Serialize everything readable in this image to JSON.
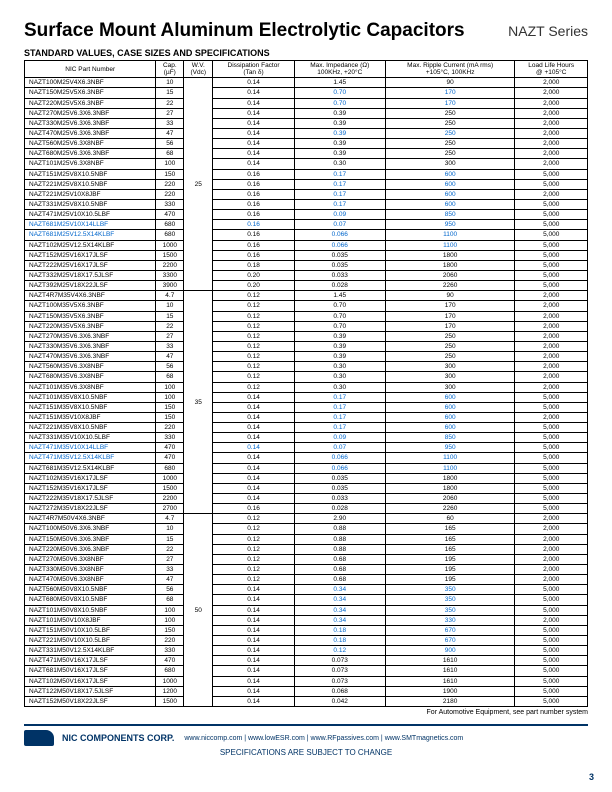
{
  "title": "Surface Mount Aluminum Electrolytic Capacitors",
  "series": "NAZT Series",
  "subtitle": "STANDARD VALUES, CASE SIZES AND SPECIFICATIONS",
  "headers": {
    "part": "NIC Part Number",
    "cap": "Cap.\n(µF)",
    "wv": "W.V.\n(Vdc)",
    "df": "Dissipation Factor\n(Tan δ)",
    "imp": "Max. Impedance (Ω)\n100KHz, +20°C",
    "ripple": "Max. Ripple Current (mA rms)\n+105°C, 100KHz",
    "life": "Load Life Hours\n@ +105°C"
  },
  "groups": [
    {
      "wv": "25",
      "rows": [
        {
          "p": "NAZT100M25V4X6.3NBF",
          "c": "10",
          "d": "0.14",
          "i": "1.45",
          "r": "90",
          "l": "2,000"
        },
        {
          "p": "NAZT150M25V5X6.3NBF",
          "c": "15",
          "d": "0.14",
          "i": "0.70",
          "r": "170",
          "l": "2,000",
          "ib": 1,
          "rb": 1
        },
        {
          "p": "NAZT220M25V5X6.3NBF",
          "c": "22",
          "d": "0.14",
          "i": "0.70",
          "r": "170",
          "l": "2,000",
          "ib": 1,
          "rb": 1
        },
        {
          "p": "NAZT270M25V6.3X6.3NBF",
          "c": "27",
          "d": "0.14",
          "i": "0.39",
          "r": "250",
          "l": "2,000"
        },
        {
          "p": "NAZT330M25V6.3X6.3NBF",
          "c": "33",
          "d": "0.14",
          "i": "0.39",
          "r": "250",
          "l": "2,000"
        },
        {
          "p": "NAZT470M25V6.3X6.3NBF",
          "c": "47",
          "d": "0.14",
          "i": "0.39",
          "r": "250",
          "l": "2,000",
          "ib": 1,
          "rb": 1
        },
        {
          "p": "NAZT560M25V6.3X8NBF",
          "c": "56",
          "d": "0.14",
          "i": "0.39",
          "r": "250",
          "l": "2,000"
        },
        {
          "p": "NAZT680M25V6.3X6.3NBF",
          "c": "68",
          "d": "0.14",
          "i": "0.39",
          "r": "250",
          "l": "2,000"
        },
        {
          "p": "NAZT101M25V6.3X8NBF",
          "c": "100",
          "d": "0.14",
          "i": "0.30",
          "r": "300",
          "l": "2,000"
        },
        {
          "p": "NAZT151M25V8X10.5NBF",
          "c": "150",
          "d": "0.16",
          "i": "0.17",
          "r": "600",
          "l": "5,000",
          "ib": 1,
          "rb": 1
        },
        {
          "p": "NAZT221M25V8X10.5NBF",
          "c": "220",
          "d": "0.16",
          "i": "0.17",
          "r": "600",
          "l": "5,000",
          "ib": 1,
          "rb": 1
        },
        {
          "p": "NAZT221M25V10X8JBF",
          "c": "220",
          "d": "0.16",
          "i": "0.17",
          "r": "600",
          "l": "2,000",
          "ib": 1,
          "rb": 1
        },
        {
          "p": "NAZT331M25V8X10.5NBF",
          "c": "330",
          "d": "0.16",
          "i": "0.17",
          "r": "600",
          "l": "5,000",
          "ib": 1,
          "rb": 1
        },
        {
          "p": "NAZT471M25V10X10.5LBF",
          "c": "470",
          "d": "0.16",
          "i": "0.09",
          "r": "850",
          "l": "5,000",
          "ib": 1,
          "rb": 1
        },
        {
          "p": "NAZT681M25V10X14LLBF",
          "c": "680",
          "d": "0.16",
          "i": "0.07",
          "r": "950",
          "l": "5,000",
          "pb": 1,
          "db": 1,
          "ib": 1,
          "rb": 1
        },
        {
          "p": "NAZT681M25V12.5X14KLBF",
          "c": "680",
          "d": "0.16",
          "i": "0.066",
          "r": "1100",
          "l": "5,000",
          "pb": 1,
          "ib": 1,
          "rb": 1
        },
        {
          "p": "NAZT102M25V12.5X14KLBF",
          "c": "1000",
          "d": "0.16",
          "i": "0.066",
          "r": "1100",
          "l": "5,000",
          "ib": 1,
          "rb": 1
        },
        {
          "p": "NAZT152M25V16X17JLSF",
          "c": "1500",
          "d": "0.16",
          "i": "0.035",
          "r": "1800",
          "l": "5,000"
        },
        {
          "p": "NAZT222M25V16X17JLSF",
          "c": "2200",
          "d": "0.18",
          "i": "0.035",
          "r": "1800",
          "l": "5,000"
        },
        {
          "p": "NAZT332M25V18X17.5JLSF",
          "c": "3300",
          "d": "0.20",
          "i": "0.033",
          "r": "2060",
          "l": "5,000"
        },
        {
          "p": "NAZT392M25V18X22JLSF",
          "c": "3900",
          "d": "0.20",
          "i": "0.028",
          "r": "2260",
          "l": "5,000"
        }
      ]
    },
    {
      "wv": "35",
      "rows": [
        {
          "p": "NAZT4R7M35V4X6.3NBF",
          "c": "4.7",
          "d": "0.12",
          "i": "1.45",
          "r": "90",
          "l": "2,000"
        },
        {
          "p": "NAZT100M35V5X6.3NBF",
          "c": "10",
          "d": "0.12",
          "i": "0.70",
          "r": "170",
          "l": "2,000"
        },
        {
          "p": "NAZT150M35V5X6.3NBF",
          "c": "15",
          "d": "0.12",
          "i": "0.70",
          "r": "170",
          "l": "2,000"
        },
        {
          "p": "NAZT220M35V5X6.3NBF",
          "c": "22",
          "d": "0.12",
          "i": "0.70",
          "r": "170",
          "l": "2,000"
        },
        {
          "p": "NAZT270M35V6.3X6.3NBF",
          "c": "27",
          "d": "0.12",
          "i": "0.39",
          "r": "250",
          "l": "2,000"
        },
        {
          "p": "NAZT330M35V6.3X6.3NBF",
          "c": "33",
          "d": "0.12",
          "i": "0.39",
          "r": "250",
          "l": "2,000"
        },
        {
          "p": "NAZT470M35V6.3X6.3NBF",
          "c": "47",
          "d": "0.12",
          "i": "0.39",
          "r": "250",
          "l": "2,000"
        },
        {
          "p": "NAZT560M35V6.3X8NBF",
          "c": "56",
          "d": "0.12",
          "i": "0.30",
          "r": "300",
          "l": "2,000"
        },
        {
          "p": "NAZT680M35V6.3X8NBF",
          "c": "68",
          "d": "0.12",
          "i": "0.30",
          "r": "300",
          "l": "2,000"
        },
        {
          "p": "NAZT101M35V6.3X8NBF",
          "c": "100",
          "d": "0.12",
          "i": "0.30",
          "r": "300",
          "l": "2,000"
        },
        {
          "p": "NAZT101M35V8X10.5NBF",
          "c": "100",
          "d": "0.14",
          "i": "0.17",
          "r": "600",
          "l": "5,000",
          "ib": 1,
          "rb": 1
        },
        {
          "p": "NAZT151M35V8X10.5NBF",
          "c": "150",
          "d": "0.14",
          "i": "0.17",
          "r": "600",
          "l": "5,000",
          "ib": 1,
          "rb": 1
        },
        {
          "p": "NAZT151M35V10X8JBF",
          "c": "150",
          "d": "0.14",
          "i": "0.17",
          "r": "600",
          "l": "2,000",
          "ib": 1,
          "rb": 1
        },
        {
          "p": "NAZT221M35V8X10.5NBF",
          "c": "220",
          "d": "0.14",
          "i": "0.17",
          "r": "600",
          "l": "5,000",
          "ib": 1,
          "rb": 1
        },
        {
          "p": "NAZT331M35V10X10.5LBF",
          "c": "330",
          "d": "0.14",
          "i": "0.09",
          "r": "850",
          "l": "5,000",
          "ib": 1,
          "rb": 1
        },
        {
          "p": "NAZT471M35V10X14LLBF",
          "c": "470",
          "d": "0.14",
          "i": "0.07",
          "r": "950",
          "l": "5,000",
          "pb": 1,
          "db": 1,
          "ib": 1,
          "rb": 1
        },
        {
          "p": "NAZT471M35V12.5X14KLBF",
          "c": "470",
          "d": "0.14",
          "i": "0.066",
          "r": "1100",
          "l": "5,000",
          "pb": 1,
          "ib": 1,
          "rb": 1
        },
        {
          "p": "NAZT681M35V12.5X14KLBF",
          "c": "680",
          "d": "0.14",
          "i": "0.066",
          "r": "1100",
          "l": "5,000",
          "ib": 1,
          "rb": 1
        },
        {
          "p": "NAZT102M35V16X17JLSF",
          "c": "1000",
          "d": "0.14",
          "i": "0.035",
          "r": "1800",
          "l": "5,000"
        },
        {
          "p": "NAZT152M35V16X17JLSF",
          "c": "1500",
          "d": "0.14",
          "i": "0.035",
          "r": "1800",
          "l": "5,000"
        },
        {
          "p": "NAZT222M35V18X17.5JLSF",
          "c": "2200",
          "d": "0.14",
          "i": "0.033",
          "r": "2060",
          "l": "5,000"
        },
        {
          "p": "NAZT272M35V18X22JLSF",
          "c": "2700",
          "d": "0.16",
          "i": "0.028",
          "r": "2260",
          "l": "5,000"
        }
      ]
    },
    {
      "wv": "50",
      "rows": [
        {
          "p": "NAZT4R7M50V4X6.3NBF",
          "c": "4.7",
          "d": "0.12",
          "i": "2.90",
          "r": "60",
          "l": "2,000"
        },
        {
          "p": "NAZT100M50V6.3X6.3NBF",
          "c": "10",
          "d": "0.12",
          "i": "0.88",
          "r": "165",
          "l": "2,000"
        },
        {
          "p": "NAZT150M50V6.3X6.3NBF",
          "c": "15",
          "d": "0.12",
          "i": "0.88",
          "r": "165",
          "l": "2,000"
        },
        {
          "p": "NAZT220M50V6.3X6.3NBF",
          "c": "22",
          "d": "0.12",
          "i": "0.88",
          "r": "165",
          "l": "2,000"
        },
        {
          "p": "NAZT270M50V6.3X8NBF",
          "c": "27",
          "d": "0.12",
          "i": "0.68",
          "r": "195",
          "l": "2,000"
        },
        {
          "p": "NAZT330M50V6.3X8NBF",
          "c": "33",
          "d": "0.12",
          "i": "0.68",
          "r": "195",
          "l": "2,000"
        },
        {
          "p": "NAZT470M50V6.3X8NBF",
          "c": "47",
          "d": "0.12",
          "i": "0.68",
          "r": "195",
          "l": "2,000"
        },
        {
          "p": "NAZT560M50V8X10.5NBF",
          "c": "56",
          "d": "0.14",
          "i": "0.34",
          "r": "350",
          "l": "5,000",
          "ib": 1,
          "rb": 1
        },
        {
          "p": "NAZT680M50V8X10.5NBF",
          "c": "68",
          "d": "0.14",
          "i": "0.34",
          "r": "350",
          "l": "5,000",
          "ib": 1,
          "rb": 1
        },
        {
          "p": "NAZT101M50V8X10.5NBF",
          "c": "100",
          "d": "0.14",
          "i": "0.34",
          "r": "350",
          "l": "5,000",
          "ib": 1,
          "rb": 1
        },
        {
          "p": "NAZT101M50V10X8JBF",
          "c": "100",
          "d": "0.14",
          "i": "0.34",
          "r": "330",
          "l": "2,000",
          "ib": 1,
          "rb": 1
        },
        {
          "p": "NAZT151M50V10X10.5LBF",
          "c": "150",
          "d": "0.14",
          "i": "0.18",
          "r": "670",
          "l": "5,000",
          "ib": 1,
          "rb": 1
        },
        {
          "p": "NAZT221M50V10X10.5LBF",
          "c": "220",
          "d": "0.14",
          "i": "0.18",
          "r": "670",
          "l": "5,000",
          "ib": 1,
          "rb": 1
        },
        {
          "p": "NAZT331M50V12.5X14KLBF",
          "c": "330",
          "d": "0.14",
          "i": "0.12",
          "r": "900",
          "l": "5,000",
          "ib": 1,
          "rb": 1
        },
        {
          "p": "NAZT471M50V16X17JLSF",
          "c": "470",
          "d": "0.14",
          "i": "0.073",
          "r": "1610",
          "l": "5,000"
        },
        {
          "p": "NAZT681M50V16X17JLSF",
          "c": "680",
          "d": "0.14",
          "i": "0.073",
          "r": "1610",
          "l": "5,000"
        },
        {
          "p": "NAZT102M50V16X17JLSF",
          "c": "1000",
          "d": "0.14",
          "i": "0.073",
          "r": "1610",
          "l": "5,000"
        },
        {
          "p": "NAZT122M50V18X17.5JLSF",
          "c": "1200",
          "d": "0.14",
          "i": "0.068",
          "r": "1900",
          "l": "5,000"
        },
        {
          "p": "NAZT152M50V18X22JLSF",
          "c": "1500",
          "d": "0.14",
          "i": "0.042",
          "r": "2180",
          "l": "5,000"
        }
      ]
    }
  ],
  "automotive": "For Automotive Equipment, see part number system",
  "corp": "NIC COMPONENTS CORP.",
  "links": "www.niccomp.com  |  www.lowESR.com  |  www.RFpassives.com  |  www.SMTmagnetics.com",
  "change": "SPECIFICATIONS ARE SUBJECT TO CHANGE",
  "page": "3"
}
